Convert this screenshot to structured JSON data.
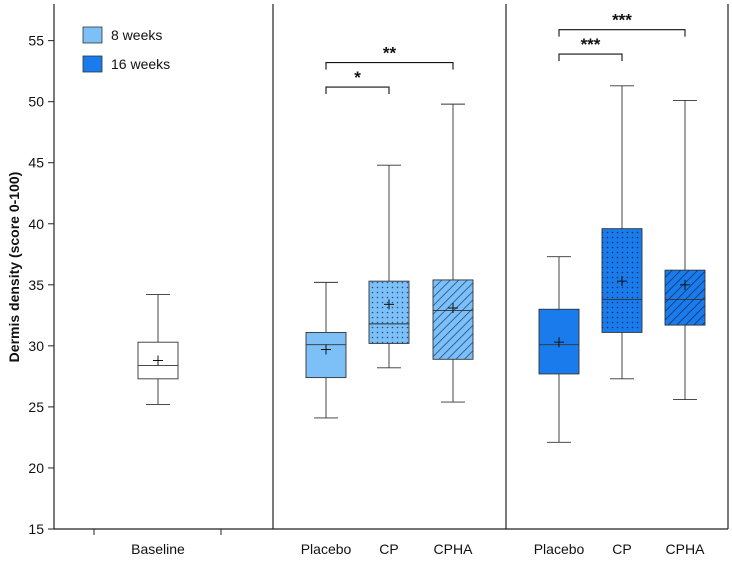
{
  "chart_data": {
    "type": "box",
    "ylabel": "Dermis density (score 0-100)",
    "ylim": [
      15,
      58
    ],
    "yticks": [
      15,
      20,
      25,
      30,
      35,
      40,
      45,
      50,
      55
    ],
    "legend": {
      "placement": "top-left",
      "items": [
        {
          "label": "8 weeks",
          "color": "#7cc0f7"
        },
        {
          "label": "16 weeks",
          "color": "#1a7cec"
        }
      ]
    },
    "categories": [
      "Baseline",
      "Placebo",
      "CP",
      "CPHA",
      "Placebo",
      "CP",
      "CPHA"
    ],
    "boxes": [
      {
        "group": "Baseline",
        "label": "Baseline",
        "color": "#ffffff",
        "pattern": "none",
        "min": 25.2,
        "q1": 27.3,
        "median": 28.4,
        "q3": 30.3,
        "max": 34.2,
        "mean": 28.8
      },
      {
        "group": "8 weeks",
        "label": "Placebo",
        "color": "#7cc0f7",
        "pattern": "none",
        "min": 24.1,
        "q1": 27.4,
        "median": 30.1,
        "q3": 31.1,
        "max": 35.2,
        "mean": 29.7
      },
      {
        "group": "8 weeks",
        "label": "CP",
        "color": "#7cc0f7",
        "pattern": "dots",
        "min": 28.2,
        "q1": 30.2,
        "median": 31.8,
        "q3": 35.3,
        "max": 44.8,
        "mean": 33.4
      },
      {
        "group": "8 weeks",
        "label": "CPHA",
        "color": "#7cc0f7",
        "pattern": "hatch",
        "min": 25.4,
        "q1": 28.9,
        "median": 32.9,
        "q3": 35.4,
        "max": 49.8,
        "mean": 33.1
      },
      {
        "group": "16 weeks",
        "label": "Placebo",
        "color": "#1a7cec",
        "pattern": "none",
        "min": 22.1,
        "q1": 27.7,
        "median": 30.1,
        "q3": 33.0,
        "max": 37.3,
        "mean": 30.3
      },
      {
        "group": "16 weeks",
        "label": "CP",
        "color": "#1a7cec",
        "pattern": "dots",
        "min": 27.3,
        "q1": 31.1,
        "median": 33.8,
        "q3": 39.6,
        "max": 51.3,
        "mean": 35.3
      },
      {
        "group": "16 weeks",
        "label": "CPHA",
        "color": "#1a7cec",
        "pattern": "hatch",
        "min": 25.6,
        "q1": 31.7,
        "median": 33.8,
        "q3": 36.2,
        "max": 50.1,
        "mean": 35.0
      }
    ],
    "significance": [
      {
        "from": 1,
        "to": 2,
        "y": 51.2,
        "label": "*"
      },
      {
        "from": 1,
        "to": 3,
        "y": 53.2,
        "label": "**"
      },
      {
        "from": 4,
        "to": 5,
        "y": 53.9,
        "label": "***"
      },
      {
        "from": 4,
        "to": 6,
        "y": 55.9,
        "label": "***"
      }
    ]
  }
}
